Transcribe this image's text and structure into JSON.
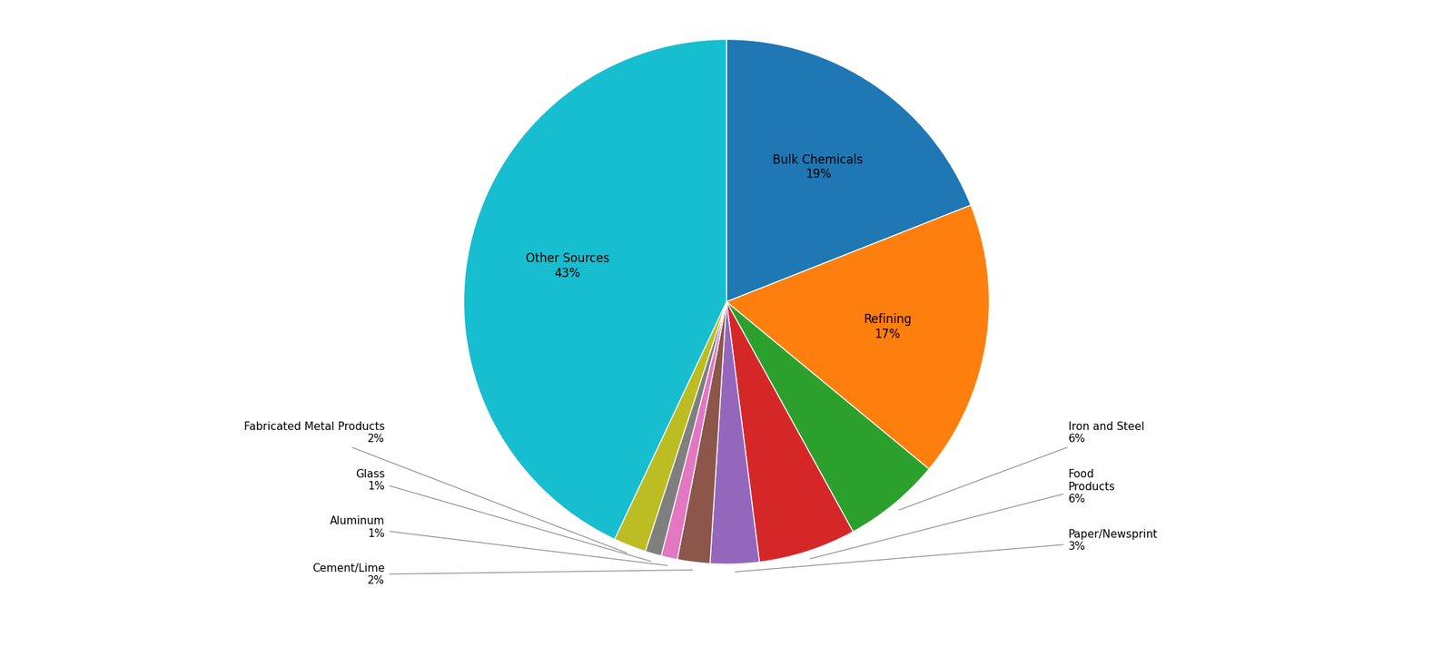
{
  "chart_data": {
    "type": "pie",
    "categories": [
      "Bulk Chemicals\n19%",
      "Refining\n17%",
      "Iron and Steel\n6%",
      "Food\nProducts\n6%",
      "Paper/Newsprint\n3%",
      "Cement/Lime\n2%",
      "Aluminum\n1%",
      "Glass\n1%",
      "Fabricated Metal Products\n2%",
      "Other Sources\n43%"
    ],
    "values": [
      19,
      17,
      6,
      6,
      3,
      2,
      1,
      1,
      2,
      43
    ]
  }
}
